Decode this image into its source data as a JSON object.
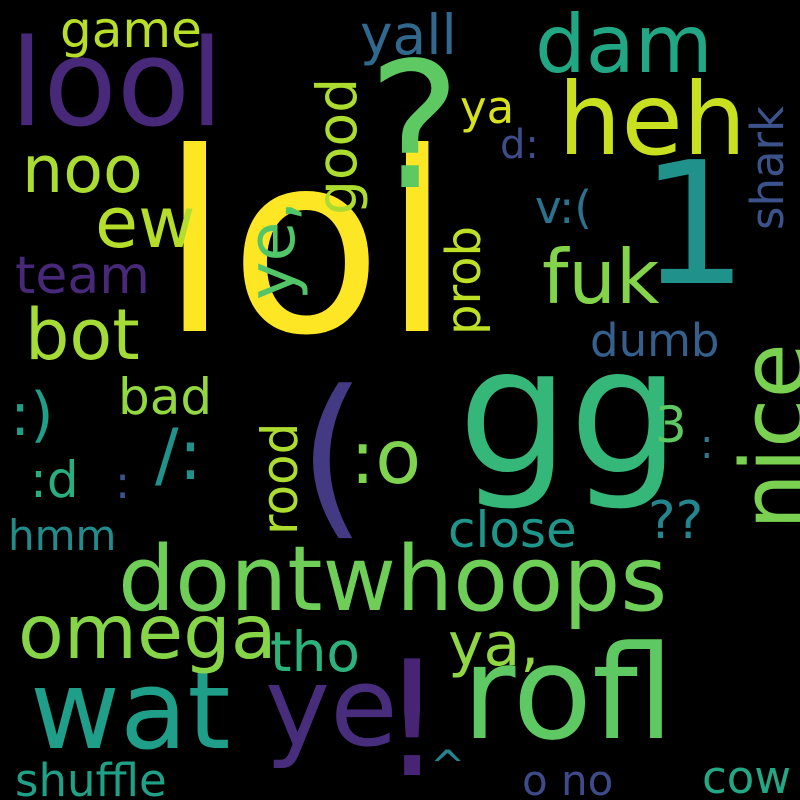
{
  "words": [
    {
      "text": "lol",
      "color": "#fde725"
    },
    {
      "text": "gg",
      "color": "#35b779"
    },
    {
      "text": "1",
      "color": "#21918c"
    },
    {
      "text": "?",
      "color": "#5ec962"
    },
    {
      "text": "(",
      "color": "#443983"
    },
    {
      "text": "dontwhoops",
      "color": "#6ece58"
    },
    {
      "text": "rofl",
      "color": "#5ec962"
    },
    {
      "text": "heh",
      "color": "#c8e020"
    },
    {
      "text": "lool",
      "color": "#482878"
    },
    {
      "text": "wat",
      "color": "#1f9e89"
    },
    {
      "text": "ye",
      "color": "#472d7b"
    },
    {
      "text": "!",
      "color": "#482475"
    },
    {
      "text": "nice",
      "color": "#7ad151"
    },
    {
      "text": "dam",
      "color": "#22a785"
    },
    {
      "text": "omega",
      "color": "#86d549"
    },
    {
      "text": "ew",
      "color": "#b5de2b"
    },
    {
      "text": "fuk",
      "color": "#84d44b"
    },
    {
      "text": "bot",
      "color": "#a5db36"
    },
    {
      "text": "noo",
      "color": "#aadc32"
    },
    {
      "text": "ye,",
      "color": "#52c569"
    },
    {
      "text": ":o",
      "color": "#7fd34e"
    },
    {
      "text": "good",
      "color": "#addc30"
    },
    {
      "text": "game",
      "color": "#b8de29"
    },
    {
      "text": "yall",
      "color": "#31688e"
    },
    {
      "text": "team",
      "color": "#482878"
    },
    {
      "text": "??",
      "color": "#25858e"
    },
    {
      "text": "close",
      "color": "#1f968b"
    },
    {
      "text": "ya,",
      "color": "#90d743"
    },
    {
      "text": "tho",
      "color": "#2db27d"
    },
    {
      "text": "shuffle",
      "color": "#1fa187"
    },
    {
      "text": "cow",
      "color": "#22a884"
    },
    {
      "text": "o no",
      "color": "#3e4a89"
    },
    {
      "text": "dumb",
      "color": "#355f8d"
    },
    {
      "text": "shark",
      "color": "#3b528b"
    },
    {
      "text": "prob",
      "color": "#bddf26"
    },
    {
      "text": "rood",
      "color": "#addc30"
    },
    {
      "text": "bad",
      "color": "#93d741"
    },
    {
      "text": ":)",
      "color": "#1f9e89"
    },
    {
      "text": ":d",
      "color": "#29af7f"
    },
    {
      "text": "hmm",
      "color": "#228c8d"
    },
    {
      "text": "ya",
      "color": "#d8e219"
    },
    {
      "text": "d:",
      "color": "#3e4c8a"
    },
    {
      "text": "v:(",
      "color": "#2c728e"
    },
    {
      "text": "/:",
      "color": "#21918c"
    },
    {
      "text": "3",
      "color": "#5ec962"
    },
    {
      "text": ":",
      "color": "#2a788e"
    },
    {
      "text": "^",
      "color": "#26828e"
    },
    {
      "text": ":",
      "color": "#3b528b"
    }
  ]
}
